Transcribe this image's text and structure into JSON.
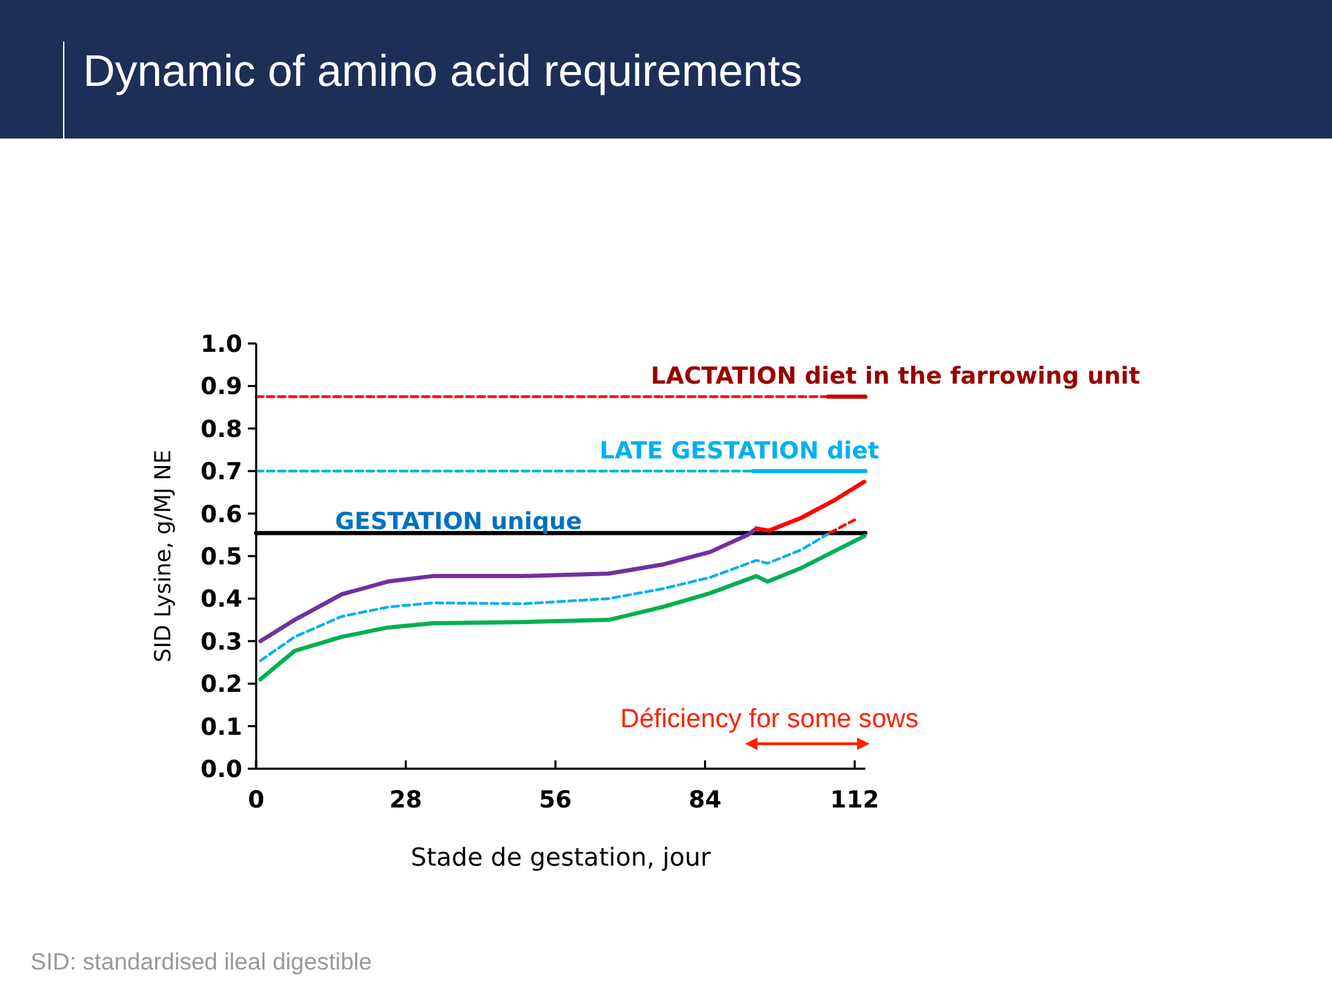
{
  "chart_data": {
    "type": "line",
    "title": "Dynamic of amino acid requirements",
    "xlabel": "Stade de gestation, jour",
    "ylabel": "SID Lysine, g/MJ NE",
    "xlim": [
      0,
      114
    ],
    "xticks": [
      0,
      28,
      56,
      84,
      112
    ],
    "ylim": [
      0,
      1
    ],
    "yticks": [
      {
        "value": 0,
        "label": "0.0"
      },
      {
        "value": 0.1,
        "label": "0.1"
      },
      {
        "value": 0.2,
        "label": "0.2"
      },
      {
        "value": 0.3,
        "label": "0.3"
      },
      {
        "value": 0.4,
        "label": "0.4"
      },
      {
        "value": 0.5,
        "label": "0.5"
      },
      {
        "value": 0.6,
        "label": "0.6"
      },
      {
        "value": 0.7,
        "label": "0.7"
      },
      {
        "value": 0.8,
        "label": "0.8"
      },
      {
        "value": 0.9,
        "label": "0.9"
      },
      {
        "value": 1,
        "label": "1.0"
      }
    ],
    "grid": false,
    "series": [
      {
        "color": "#ff0000",
        "line_style": "dashed",
        "x": [
          0,
          107
        ],
        "values": [
          0.875,
          0.875
        ]
      },
      {
        "color": "#c00000",
        "line_style": "solid",
        "x": [
          107,
          114
        ],
        "values": [
          0.875,
          0.875
        ]
      },
      {
        "color": "#00b0f0",
        "line_style": "dashed",
        "x": [
          0,
          93
        ],
        "values": [
          0.7,
          0.7
        ]
      },
      {
        "color": "#00b0f0",
        "line_style": "solid",
        "x": [
          93,
          114
        ],
        "values": [
          0.7,
          0.7
        ]
      },
      {
        "color": "#000000",
        "line_style": "solid",
        "x": [
          0,
          114
        ],
        "values": [
          0.554,
          0.554
        ]
      },
      {
        "color": "#7030a0",
        "line_style": "solid",
        "x": [
          0.8,
          7.2,
          16,
          24.6,
          33,
          50,
          66,
          76,
          85,
          92,
          93.6
        ],
        "values": [
          0.3,
          0.35,
          0.41,
          0.44,
          0.453,
          0.453,
          0.459,
          0.48,
          0.51,
          0.55,
          0.565
        ]
      },
      {
        "color": "#ff0000",
        "line_style": "solid",
        "x": [
          93.6,
          96,
          102,
          108,
          113.8
        ],
        "values": [
          0.565,
          0.56,
          0.59,
          0.63,
          0.675
        ]
      },
      {
        "color": "#00b0f0",
        "line_style": "dashed",
        "x": [
          0.8,
          7.2,
          16,
          24.6,
          33,
          50,
          66,
          76,
          85,
          93.6,
          95.7,
          102,
          107.3
        ],
        "values": [
          0.254,
          0.31,
          0.358,
          0.38,
          0.39,
          0.388,
          0.4,
          0.423,
          0.45,
          0.49,
          0.483,
          0.515,
          0.554
        ]
      },
      {
        "color": "#ff0000",
        "line_style": "dashed",
        "x": [
          107.3,
          110.4,
          112
        ],
        "values": [
          0.554,
          0.575,
          0.585
        ]
      },
      {
        "color": "#00b050",
        "line_style": "solid",
        "x": [
          0.8,
          7.2,
          16,
          24.6,
          33,
          50,
          66,
          76,
          85,
          93.6,
          95.7,
          102,
          113.8
        ],
        "values": [
          0.21,
          0.277,
          0.31,
          0.332,
          0.342,
          0.345,
          0.35,
          0.38,
          0.413,
          0.453,
          0.44,
          0.472,
          0.547
        ]
      }
    ],
    "annotations": [
      "LACTATION diet in the farrowing unit",
      "LATE GESTATION diet",
      "GESTATION unique",
      "Déficiency for some sows",
      "SID: standardised ileal digestible"
    ]
  }
}
